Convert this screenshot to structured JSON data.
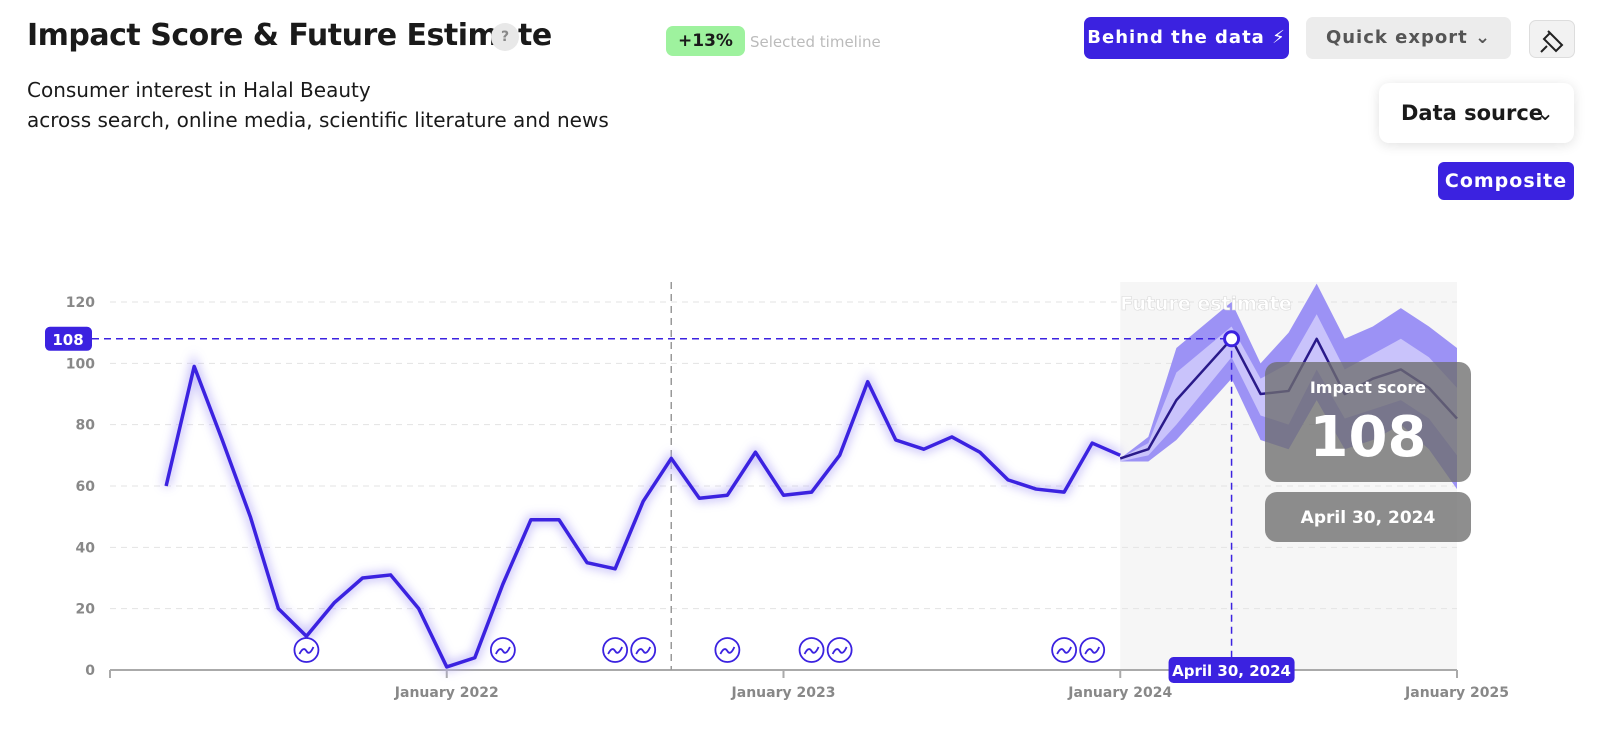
{
  "header": {
    "title": "Impact Score & Future Estimate",
    "help": "?",
    "change": "+13%",
    "change_label": "Selected timeline",
    "subtitle_1": "Consumer interest in Halal Beauty",
    "subtitle_2": "across search, online media, scientific literature and news"
  },
  "buttons": {
    "behind": "Behind the data",
    "export": "Quick export",
    "data_source": "Data source",
    "composite": "Composite"
  },
  "chart_data": {
    "type": "line",
    "x": [
      "2021-03",
      "2021-04",
      "2021-05",
      "2021-06",
      "2021-07",
      "2021-08",
      "2021-09",
      "2021-10",
      "2021-11",
      "2021-12",
      "2022-01",
      "2022-02",
      "2022-03",
      "2022-04",
      "2022-05",
      "2022-06",
      "2022-07",
      "2022-08",
      "2022-09",
      "2022-10",
      "2022-11",
      "2022-12",
      "2023-01",
      "2023-02",
      "2023-03",
      "2023-04",
      "2023-05",
      "2023-06",
      "2023-07",
      "2023-08",
      "2023-09",
      "2023-10",
      "2023-11",
      "2023-12",
      "2024-01"
    ],
    "series": [
      {
        "name": "Impact score",
        "color": "#3b22e0",
        "values": [
          60,
          99,
          75,
          50,
          20,
          11,
          22,
          30,
          31,
          20,
          1,
          4,
          28,
          49,
          49,
          35,
          33,
          55,
          69,
          56,
          57,
          71,
          57,
          58,
          70,
          94,
          75,
          72,
          76,
          71,
          62,
          59,
          58,
          74,
          70
        ]
      }
    ],
    "forecast": {
      "label": "Future estimate",
      "color": "#2a1a8a",
      "x": [
        "2024-01",
        "2024-02",
        "2024-03",
        "2024-04-30",
        "2024-06",
        "2024-07",
        "2024-08",
        "2024-09",
        "2024-10",
        "2024-11",
        "2024-12",
        "2025-01"
      ],
      "values": [
        69,
        72,
        88,
        108,
        90,
        91,
        108,
        90,
        95,
        98,
        92,
        82
      ],
      "inner_upper": [
        69,
        74,
        97,
        112,
        95,
        100,
        116,
        98,
        103,
        108,
        102,
        92
      ],
      "inner_lower": [
        68,
        70,
        80,
        102,
        83,
        80,
        98,
        82,
        85,
        88,
        82,
        70
      ],
      "outer_upper": [
        69,
        76,
        105,
        120,
        100,
        110,
        126,
        108,
        112,
        118,
        112,
        105
      ],
      "outer_lower": [
        68,
        68,
        75,
        95,
        75,
        72,
        88,
        72,
        75,
        80,
        72,
        59
      ]
    },
    "selected": {
      "title": "Impact score",
      "value": 108,
      "label": "April 30, 2024",
      "x": "2024-04-30"
    },
    "timeline_start": "2022-09",
    "future_start": "2024-01",
    "events": [
      "2021-08",
      "2022-03",
      "2022-07",
      "2022-08",
      "2022-11",
      "2023-02",
      "2023-03",
      "2023-11",
      "2023-12"
    ],
    "xlim": [
      "2021-01",
      "2025-01"
    ],
    "xticks": [
      {
        "value": "2022-01",
        "label": "January 2022"
      },
      {
        "value": "2023-01",
        "label": "January 2023"
      },
      {
        "value": "2024-01",
        "label": "January 2024"
      },
      {
        "value": "2025-01",
        "label": "January 2025"
      }
    ],
    "ylim": [
      0,
      120
    ],
    "yticks": [
      0,
      20,
      40,
      60,
      80,
      100,
      120
    ],
    "grid": true
  }
}
